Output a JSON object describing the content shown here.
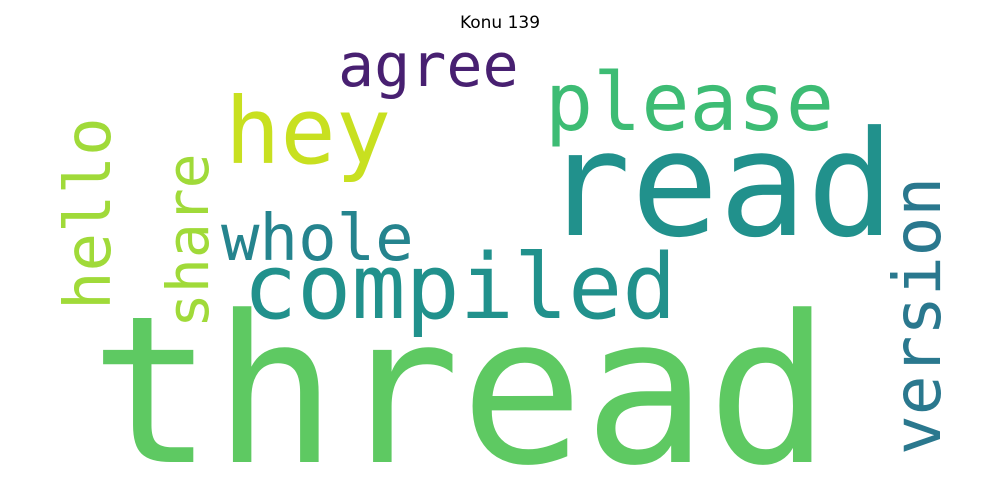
{
  "title": "Konu 139",
  "words": [
    {
      "text": "thread",
      "color": "#5ec962"
    },
    {
      "text": "read",
      "color": "#21918c"
    },
    {
      "text": "compiled",
      "color": "#21918c"
    },
    {
      "text": "please",
      "color": "#3dbc74"
    },
    {
      "text": "hey",
      "color": "#c8e020"
    },
    {
      "text": "agree",
      "color": "#482071"
    },
    {
      "text": "whole",
      "color": "#25848e"
    },
    {
      "text": "hello",
      "color": "#a0da39"
    },
    {
      "text": "share",
      "color": "#a0da39"
    },
    {
      "text": "version",
      "color": "#2a788e"
    }
  ]
}
